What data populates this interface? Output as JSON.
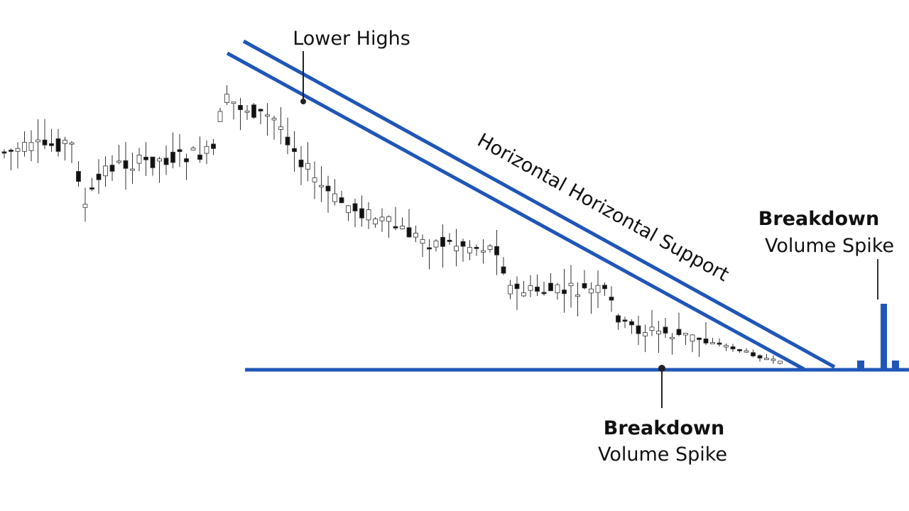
{
  "annotations": {
    "lower_highs": "Lower Highs",
    "trendline_label": "Horizontal Horizontal Support",
    "breakdown_right": {
      "title": "Breakdown",
      "subtitle": "Volume Spike"
    },
    "breakdown_bottom": {
      "title": "Breakdown",
      "subtitle": "Volume Spike"
    }
  }
}
